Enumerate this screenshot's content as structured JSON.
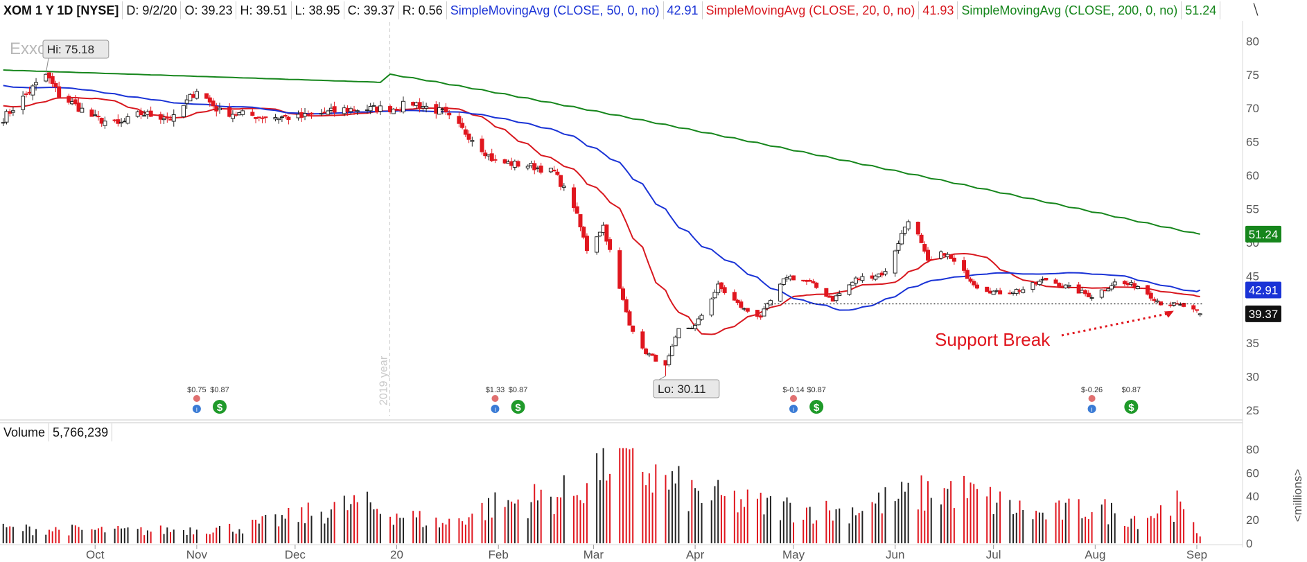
{
  "header": {
    "symbol": "XOM 1 Y 1D [NYSE]",
    "date": "D: 9/2/20",
    "open": "O: 39.23",
    "high": "H: 39.51",
    "low": "L: 38.95",
    "close": "C: 39.37",
    "range": "R: 0.56",
    "ma50_label": "SimpleMovingAvg (CLOSE, 50, 0, no)",
    "ma50_value": "42.91",
    "ma20_label": "SimpleMovingAvg (CLOSE, 20, 0, no)",
    "ma20_value": "41.93",
    "ma200_label": "SimpleMovingAvg (CLOSE, 200, 0, no)",
    "ma200_value": "51.24",
    "tool_icon": "drawing-tool-icon"
  },
  "logo_text": "Exxo",
  "volume_header": {
    "label": "Volume",
    "value": "5,766,239"
  },
  "colors": {
    "up": "#222222",
    "down": "#e0161e",
    "ma20": "#d8181f",
    "ma50": "#1a33d6",
    "ma200": "#16861c",
    "annotation": "#e0161e"
  },
  "chart_data": [
    {
      "type": "candlestick",
      "title": "XOM 1 Y 1D [NYSE]",
      "ylim": [
        25,
        82
      ],
      "y_ticks": [
        25,
        30,
        35,
        40,
        45,
        50,
        55,
        60,
        65,
        70,
        75,
        80
      ],
      "x_labels": [
        "Oct",
        "Nov",
        "Dec",
        "20",
        "Feb",
        "Mar",
        "Apr",
        "May",
        "Jun",
        "Jul",
        "Aug",
        "Sep"
      ],
      "period_label": "2019 year",
      "series_anchors": [
        {
          "date": "2019-09-03",
          "close": 68.5
        },
        {
          "date": "2019-09-16",
          "close": 75.0
        },
        {
          "date": "2019-09-20",
          "close": 72.0
        },
        {
          "date": "2019-10-01",
          "close": 68.5
        },
        {
          "date": "2019-10-08",
          "close": 67.5
        },
        {
          "date": "2019-10-15",
          "close": 69.2
        },
        {
          "date": "2019-10-25",
          "close": 68.5
        },
        {
          "date": "2019-11-01",
          "close": 72.8
        },
        {
          "date": "2019-11-08",
          "close": 69.5
        },
        {
          "date": "2019-11-20",
          "close": 68.8
        },
        {
          "date": "2019-12-02",
          "close": 68.6
        },
        {
          "date": "2019-12-16",
          "close": 69.8
        },
        {
          "date": "2019-12-31",
          "close": 70.0
        },
        {
          "date": "2020-01-06",
          "close": 70.8
        },
        {
          "date": "2020-01-15",
          "close": 69.4
        },
        {
          "date": "2020-01-24",
          "close": 65.5
        },
        {
          "date": "2020-01-31",
          "close": 62.0
        },
        {
          "date": "2020-02-10",
          "close": 61.5
        },
        {
          "date": "2020-02-18",
          "close": 60.5
        },
        {
          "date": "2020-02-24",
          "close": 55.5
        },
        {
          "date": "2020-02-28",
          "close": 49.0
        },
        {
          "date": "2020-03-04",
          "close": 52.5
        },
        {
          "date": "2020-03-09",
          "close": 43.0
        },
        {
          "date": "2020-03-12",
          "close": 38.0
        },
        {
          "date": "2020-03-16",
          "close": 34.0
        },
        {
          "date": "2020-03-23",
          "close": 31.5
        },
        {
          "date": "2020-03-27",
          "close": 37.0
        },
        {
          "date": "2020-04-01",
          "close": 37.5
        },
        {
          "date": "2020-04-08",
          "close": 43.5
        },
        {
          "date": "2020-04-16",
          "close": 40.0
        },
        {
          "date": "2020-04-21",
          "close": 39.0
        },
        {
          "date": "2020-04-29",
          "close": 45.0
        },
        {
          "date": "2020-05-06",
          "close": 44.0
        },
        {
          "date": "2020-05-13",
          "close": 41.5
        },
        {
          "date": "2020-05-20",
          "close": 44.5
        },
        {
          "date": "2020-05-29",
          "close": 45.5
        },
        {
          "date": "2020-06-05",
          "close": 53.5
        },
        {
          "date": "2020-06-08",
          "close": 51.0
        },
        {
          "date": "2020-06-11",
          "close": 47.0
        },
        {
          "date": "2020-06-16",
          "close": 48.5
        },
        {
          "date": "2020-06-26",
          "close": 43.5
        },
        {
          "date": "2020-07-02",
          "close": 42.5
        },
        {
          "date": "2020-07-10",
          "close": 43.0
        },
        {
          "date": "2020-07-17",
          "close": 44.5
        },
        {
          "date": "2020-07-31",
          "close": 42.0
        },
        {
          "date": "2020-08-07",
          "close": 44.0
        },
        {
          "date": "2020-08-14",
          "close": 43.5
        },
        {
          "date": "2020-08-21",
          "close": 41.0
        },
        {
          "date": "2020-08-28",
          "close": 40.5
        },
        {
          "date": "2020-09-02",
          "close": 39.37
        }
      ],
      "moving_averages": [
        {
          "name": "SimpleMovingAvg (CLOSE, 20, 0, no)",
          "period": 20,
          "last": 41.93
        },
        {
          "name": "SimpleMovingAvg (CLOSE, 50, 0, no)",
          "period": 50,
          "last": 42.91
        },
        {
          "name": "SimpleMovingAvg (CLOSE, 200, 0, no)",
          "period": 200,
          "last": 51.24
        }
      ],
      "price_tags": [
        {
          "value": "51.24",
          "color": "#16861c",
          "level": 51.24
        },
        {
          "value": "42.91",
          "color": "#1a33d6",
          "level": 42.91
        },
        {
          "value": "39.37",
          "color": "#111111",
          "level": 39.37
        }
      ],
      "high_callout": {
        "text": "Hi: 75.18",
        "date": "2019-09-16",
        "level": 75.18
      },
      "low_callout": {
        "text": "Lo: 30.11",
        "date": "2020-03-23",
        "level": 30.11
      },
      "support_line": {
        "level": 40.85,
        "from": "2020-04-22",
        "to": "2020-09-02"
      },
      "annotation": {
        "text": "Support Break",
        "arrow_to": "2020-08-25"
      },
      "events": [
        {
          "date": "2019-11-01",
          "kind": "earnings",
          "text": "$0.75"
        },
        {
          "date": "2019-11-08",
          "kind": "dividend",
          "text": "$0.87"
        },
        {
          "date": "2020-01-31",
          "kind": "earnings",
          "text": "$1.33"
        },
        {
          "date": "2020-02-07",
          "kind": "dividend",
          "text": "$0.87"
        },
        {
          "date": "2020-05-01",
          "kind": "earnings",
          "text": "$-0.14"
        },
        {
          "date": "2020-05-08",
          "kind": "dividend",
          "text": "$0.87"
        },
        {
          "date": "2020-07-31",
          "kind": "earnings",
          "text": "$-0.26"
        },
        {
          "date": "2020-08-12",
          "kind": "dividend",
          "text": "$0.87"
        }
      ]
    },
    {
      "type": "bar",
      "title": "Volume",
      "ylabel": "<millions>",
      "ylim": [
        0,
        82
      ],
      "y_ticks": [
        0,
        20,
        40,
        60,
        80
      ],
      "volume_anchors": [
        {
          "date": "2019-09-03",
          "value": 13
        },
        {
          "date": "2019-10-15",
          "value": 11
        },
        {
          "date": "2019-11-15",
          "value": 14
        },
        {
          "date": "2019-12-20",
          "value": 35
        },
        {
          "date": "2020-01-15",
          "value": 17
        },
        {
          "date": "2020-01-31",
          "value": 34
        },
        {
          "date": "2020-02-24",
          "value": 45
        },
        {
          "date": "2020-03-06",
          "value": 78
        },
        {
          "date": "2020-03-12",
          "value": 80
        },
        {
          "date": "2020-03-19",
          "value": 60
        },
        {
          "date": "2020-03-31",
          "value": 44
        },
        {
          "date": "2020-04-21",
          "value": 34
        },
        {
          "date": "2020-05-15",
          "value": 28
        },
        {
          "date": "2020-06-05",
          "value": 42
        },
        {
          "date": "2020-06-19",
          "value": 48
        },
        {
          "date": "2020-07-15",
          "value": 25
        },
        {
          "date": "2020-07-31",
          "value": 32
        },
        {
          "date": "2020-08-14",
          "value": 22
        },
        {
          "date": "2020-08-26",
          "value": 34
        },
        {
          "date": "2020-09-02",
          "value": 6
        }
      ]
    }
  ]
}
